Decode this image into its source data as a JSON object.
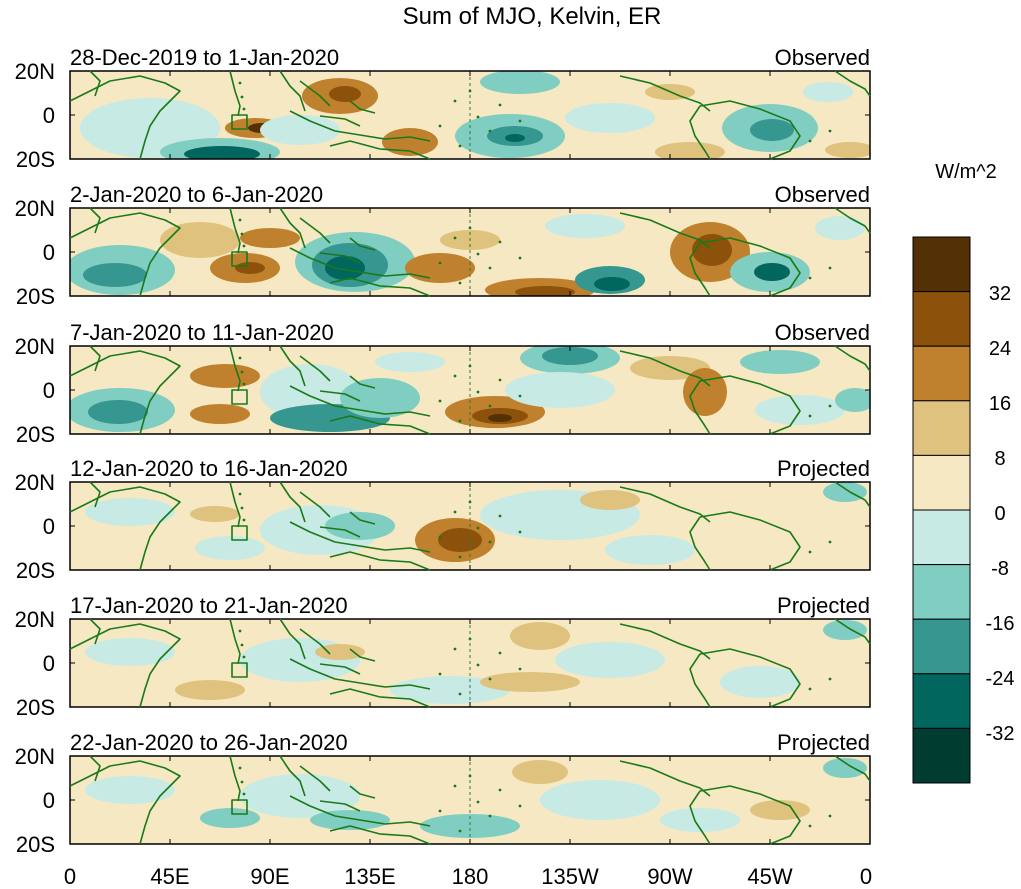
{
  "title": "Sum of MJO, Kelvin, ER",
  "colorbar": {
    "unit_label": "W/m^2",
    "levels": [
      "32",
      "24",
      "16",
      "8",
      "0",
      "-8",
      "-16",
      "-24",
      "-32"
    ],
    "colors_top_to_bottom": [
      "#543005",
      "#8c510a",
      "#bf812d",
      "#dfc27d",
      "#f6e8c3",
      "#c7eae5",
      "#80cdc1",
      "#35978f",
      "#01665e",
      "#003c30"
    ]
  },
  "latitude_ticks": [
    "20N",
    "0",
    "20S"
  ],
  "longitude_ticks": [
    "0",
    "45E",
    "90E",
    "135E",
    "180",
    "135W",
    "90W",
    "45W",
    "0"
  ],
  "panels": [
    {
      "period": "28-Dec-2019 to 1-Jan-2020",
      "status": "Observed"
    },
    {
      "period": "2-Jan-2020 to 6-Jan-2020",
      "status": "Observed"
    },
    {
      "period": "7-Jan-2020 to 11-Jan-2020",
      "status": "Observed"
    },
    {
      "period": "12-Jan-2020 to 16-Jan-2020",
      "status": "Projected"
    },
    {
      "period": "17-Jan-2020 to 21-Jan-2020",
      "status": "Projected"
    },
    {
      "period": "22-Jan-2020 to 26-Jan-2020",
      "status": "Projected"
    }
  ],
  "map_style": {
    "coastline_color": "#1a7a1a",
    "dateline_color": "#2e7d32"
  }
}
